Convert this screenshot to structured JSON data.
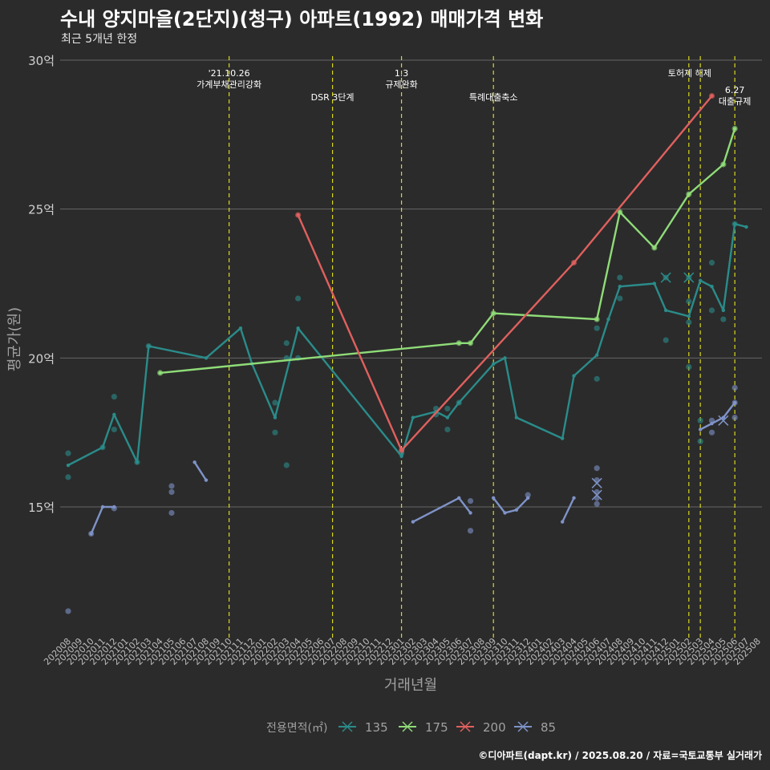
{
  "title": "수내 양지마을(2단지)(청구) 아파트(1992) 매매가격 변화",
  "subtitle": "최근 5개년 한정",
  "caption": "©디아파트(dapt.kr) / 2025.08.20 / 자료=국토교통부 실거래가",
  "colors": {
    "background": "#2b2b2b",
    "grid": "#666666",
    "event_line": "#d8d820",
    "s135": "#2a8c8a",
    "s175": "#8fdc78",
    "s200": "#e0605e",
    "s85": "#7f93c8"
  },
  "chart_data": {
    "type": "line",
    "xlabel": "거래년월",
    "ylabel": "평균가(원)",
    "ylim": [
      10.5,
      30
    ],
    "yticks": [
      15,
      20,
      25,
      30
    ],
    "ytick_labels": [
      "15억",
      "20억",
      "25억",
      "30억"
    ],
    "categories": [
      "202008",
      "202009",
      "202010",
      "202011",
      "202012",
      "202101",
      "202102",
      "202103",
      "202104",
      "202105",
      "202106",
      "202107",
      "202108",
      "202109",
      "202110",
      "202111",
      "202112",
      "202201",
      "202202",
      "202203",
      "202204",
      "202205",
      "202206",
      "202207",
      "202208",
      "202209",
      "202210",
      "202211",
      "202212",
      "202301",
      "202302",
      "202303",
      "202304",
      "202305",
      "202306",
      "202307",
      "202308",
      "202309",
      "202310",
      "202311",
      "202312",
      "202401",
      "202402",
      "202403",
      "202404",
      "202405",
      "202406",
      "202407",
      "202408",
      "202409",
      "202410",
      "202411",
      "202412",
      "202501",
      "202502",
      "202503",
      "202504",
      "202505",
      "202506",
      "202507",
      "202508"
    ],
    "legend_title": "전용면적(㎡)",
    "legend_position": "bottom",
    "events": [
      {
        "x": "202110",
        "label": "'21.10.26\n가계부채관리강화",
        "row": 0
      },
      {
        "x": "202207",
        "label": "DSR 3단계",
        "row": 1
      },
      {
        "x": "202301",
        "label": "1.3\n규제완화",
        "row": 0
      },
      {
        "x": "202309",
        "label": "특례대출축소",
        "row": 1
      },
      {
        "x": "202502",
        "label": "토허제 해제",
        "row": 0
      },
      {
        "x": "202503",
        "label": "",
        "row": 0
      },
      {
        "x": "202506",
        "label": "6.27\n대출규제",
        "row": 1
      }
    ],
    "series": [
      {
        "name": "135",
        "color": "#2a8c8a",
        "line": [
          [
            "202008",
            16.4
          ],
          [
            "202011",
            17.0
          ],
          [
            "202012",
            18.1
          ],
          [
            "202102",
            16.5
          ],
          [
            "202103",
            20.4
          ],
          [
            "202108",
            20.0
          ],
          [
            "202111",
            21.0
          ],
          [
            "202112",
            19.8
          ],
          [
            "202202",
            18.0
          ],
          [
            "202204",
            21.0
          ],
          [
            "202301",
            16.7
          ],
          [
            "202302",
            18.0
          ],
          [
            "202304",
            18.2
          ],
          [
            "202305",
            18.0
          ],
          [
            "202306",
            18.5
          ],
          [
            "202309",
            19.8
          ],
          [
            "202310",
            20.0
          ],
          [
            "202311",
            18.0
          ],
          [
            "202403",
            17.3
          ],
          [
            "202404",
            19.4
          ],
          [
            "202406",
            20.1
          ],
          [
            "202407",
            21.3
          ],
          [
            "202408",
            22.4
          ],
          [
            "202411",
            22.5
          ],
          [
            "202412",
            21.6
          ],
          [
            "202502",
            21.4
          ],
          [
            "202503",
            22.6
          ],
          [
            "202504",
            22.4
          ],
          [
            "202505",
            21.6
          ],
          [
            "202506",
            24.5
          ],
          [
            "202507",
            24.4
          ]
        ],
        "points": [
          [
            "202008",
            16.8
          ],
          [
            "202008",
            16.0
          ],
          [
            "202011",
            17.0
          ],
          [
            "202012",
            18.7
          ],
          [
            "202012",
            17.6
          ],
          [
            "202102",
            16.5
          ],
          [
            "202103",
            20.4
          ],
          [
            "202202",
            18.5
          ],
          [
            "202202",
            17.5
          ],
          [
            "202203",
            20.5
          ],
          [
            "202203",
            20.0
          ],
          [
            "202203",
            16.4
          ],
          [
            "202204",
            22.0
          ],
          [
            "202204",
            20.0
          ],
          [
            "202301",
            16.8
          ],
          [
            "202304",
            18.3
          ],
          [
            "202304",
            18.1
          ],
          [
            "202305",
            18.3
          ],
          [
            "202305",
            17.6
          ],
          [
            "202306",
            18.5
          ],
          [
            "202406",
            21.0
          ],
          [
            "202406",
            19.3
          ],
          [
            "202408",
            22.7
          ],
          [
            "202408",
            22.0
          ],
          [
            "202412",
            22.7
          ],
          [
            "202412",
            20.6
          ],
          [
            "202502",
            22.7
          ],
          [
            "202502",
            21.9
          ],
          [
            "202502",
            21.2
          ],
          [
            "202502",
            19.7
          ],
          [
            "202503",
            17.9
          ],
          [
            "202503",
            17.2
          ],
          [
            "202504",
            23.2
          ],
          [
            "202504",
            21.6
          ],
          [
            "202505",
            21.3
          ],
          [
            "202506",
            24.5
          ]
        ]
      },
      {
        "name": "175",
        "color": "#8fdc78",
        "line": [
          [
            "202104",
            19.5
          ],
          [
            "202306",
            20.5
          ],
          [
            "202307",
            20.5
          ],
          [
            "202309",
            21.5
          ],
          [
            "202406",
            21.3
          ],
          [
            "202408",
            24.9
          ],
          [
            "202411",
            23.7
          ],
          [
            "202502",
            25.5
          ],
          [
            "202505",
            26.5
          ],
          [
            "202506",
            27.7
          ]
        ],
        "points": [
          [
            "202104",
            19.5
          ],
          [
            "202306",
            20.5
          ],
          [
            "202307",
            20.5
          ],
          [
            "202309",
            21.5
          ],
          [
            "202406",
            21.3
          ],
          [
            "202408",
            24.9
          ],
          [
            "202411",
            23.7
          ],
          [
            "202502",
            25.5
          ],
          [
            "202505",
            26.5
          ],
          [
            "202506",
            27.7
          ]
        ]
      },
      {
        "name": "200",
        "color": "#e0605e",
        "line": [
          [
            "202204",
            24.8
          ],
          [
            "202301",
            16.9
          ],
          [
            "202404",
            23.2
          ],
          [
            "202504",
            28.8
          ]
        ],
        "points": [
          [
            "202204",
            24.8
          ],
          [
            "202301",
            16.9
          ],
          [
            "202404",
            23.2
          ],
          [
            "202504",
            28.8
          ]
        ]
      },
      {
        "name": "85",
        "color": "#7f93c8",
        "line_segments": [
          [
            [
              "202010",
              14.1
            ],
            [
              "202011",
              15.0
            ],
            [
              "202012",
              15.0
            ]
          ],
          [
            [
              "202107",
              16.5
            ],
            [
              "202108",
              15.9
            ]
          ],
          [
            [
              "202302",
              14.5
            ],
            [
              "202306",
              15.3
            ],
            [
              "202307",
              14.8
            ]
          ],
          [
            [
              "202309",
              15.3
            ],
            [
              "202310",
              14.8
            ],
            [
              "202311",
              14.9
            ],
            [
              "202312",
              15.3
            ]
          ],
          [
            [
              "202403",
              14.5
            ],
            [
              "202404",
              15.3
            ]
          ],
          [
            [
              "202503",
              17.6
            ],
            [
              "202504",
              17.8
            ],
            [
              "202505",
              18.0
            ],
            [
              "202506",
              18.5
            ]
          ]
        ],
        "points": [
          [
            "202008",
            11.5
          ],
          [
            "202010",
            14.1
          ],
          [
            "202012",
            14.95
          ],
          [
            "202105",
            15.7
          ],
          [
            "202105",
            15.5
          ],
          [
            "202105",
            14.8
          ],
          [
            "202307",
            14.2
          ],
          [
            "202307",
            15.2
          ],
          [
            "202312",
            15.4
          ],
          [
            "202406",
            16.3
          ],
          [
            "202406",
            15.9
          ],
          [
            "202406",
            15.5
          ],
          [
            "202406",
            15.3
          ],
          [
            "202406",
            15.1
          ],
          [
            "202504",
            17.5
          ],
          [
            "202504",
            17.9
          ],
          [
            "202506",
            18.5
          ],
          [
            "202506",
            18.0
          ],
          [
            "202506",
            19.0
          ]
        ]
      }
    ],
    "x_marks": [
      {
        "x": "202412",
        "y": 22.7,
        "color": "#2a8c8a"
      },
      {
        "x": "202502",
        "y": 22.7,
        "color": "#2a8c8a"
      },
      {
        "x": "202406",
        "y": 15.8,
        "color": "#7f93c8"
      },
      {
        "x": "202406",
        "y": 15.4,
        "color": "#7f93c8"
      },
      {
        "x": "202505",
        "y": 17.9,
        "color": "#7f93c8"
      }
    ]
  }
}
